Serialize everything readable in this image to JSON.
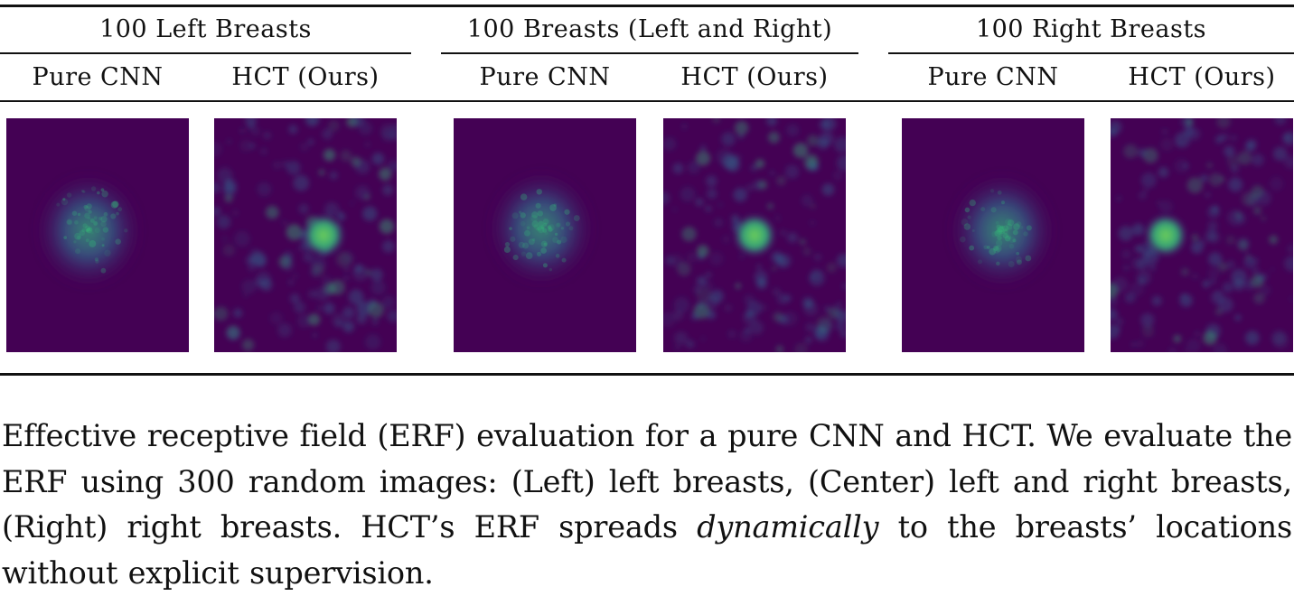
{
  "groups": [
    {
      "title": "100 Left Breasts",
      "columns": [
        {
          "label": "Pure CNN"
        },
        {
          "label": "HCT (Ours)"
        }
      ]
    },
    {
      "title": "100 Breasts (Left and Right)",
      "columns": [
        {
          "label": "Pure CNN"
        },
        {
          "label": "HCT (Ours)"
        }
      ]
    },
    {
      "title": "100 Right Breasts",
      "columns": [
        {
          "label": "Pure CNN"
        },
        {
          "label": "HCT (Ours)"
        }
      ]
    }
  ],
  "colors": {
    "background": "#440154",
    "glow_mid": "#31688e",
    "glow_bright": "#35b779",
    "glow_peak": "#6ece58"
  },
  "caption": {
    "part1": "Effective receptive field (ERF) evaluation for a pure CNN and HCT. We evaluate the ERF using 300 random images: (Left) left breasts, (Center) left and right breasts, (Right) right breasts. HCT’s ERF spreads ",
    "emphasis": "dynamically",
    "part2": " to the breasts’ locations without explicit supervision."
  }
}
